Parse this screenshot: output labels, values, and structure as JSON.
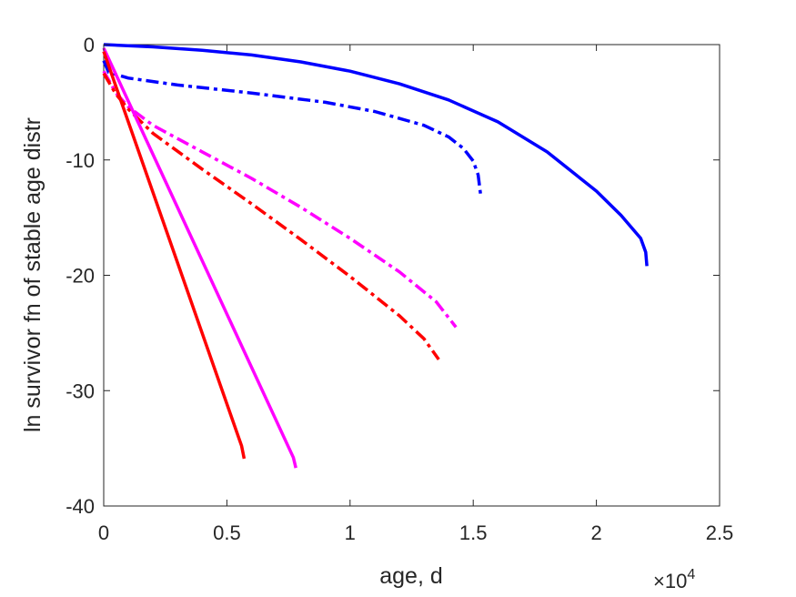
{
  "chart_data": {
    "type": "line",
    "xlabel": "age, d",
    "ylabel": "ln survivor fn of stable age distr",
    "x_multiplier": "×10",
    "x_multiplier_exponent": "4",
    "xlim": [
      0,
      25000
    ],
    "ylim": [
      -40,
      0
    ],
    "x_ticks": [
      0,
      5000,
      10000,
      15000,
      20000,
      25000
    ],
    "x_tick_labels": [
      "0",
      "0.5",
      "1",
      "1.5",
      "2",
      "2.5"
    ],
    "y_ticks": [
      0,
      -10,
      -20,
      -30,
      -40
    ],
    "y_tick_labels": [
      "0",
      "-10",
      "-20",
      "-30",
      "-40"
    ],
    "grid": false,
    "series": [
      {
        "color": "#0000ff",
        "dash": "solid",
        "x": [
          0,
          2000,
          4000,
          6000,
          8000,
          10000,
          12000,
          14000,
          16000,
          18000,
          20000,
          21000,
          21800,
          22000,
          22050
        ],
        "y": [
          0,
          -0.2,
          -0.5,
          -0.9,
          -1.5,
          -2.3,
          -3.4,
          -4.8,
          -6.7,
          -9.3,
          -12.7,
          -14.8,
          -16.8,
          -18.0,
          -19.2
        ]
      },
      {
        "color": "#0000ff",
        "dash": "dashdot",
        "x": [
          0,
          200,
          1000,
          3000,
          6000,
          9000,
          11000,
          13000,
          14000,
          14600,
          15000,
          15200,
          15300
        ],
        "y": [
          -1.4,
          -2.4,
          -2.9,
          -3.5,
          -4.2,
          -5.0,
          -5.8,
          -7.0,
          -8.0,
          -9.0,
          -10.1,
          -11.3,
          -13.0
        ]
      },
      {
        "color": "#ff00ff",
        "dash": "dashdot",
        "x": [
          0,
          500,
          1000,
          2000,
          4000,
          6000,
          8000,
          10000,
          12000,
          13500,
          14300
        ],
        "y": [
          -2.3,
          -4.2,
          -5.4,
          -7.0,
          -9.3,
          -11.6,
          -14.1,
          -16.8,
          -19.7,
          -22.3,
          -24.5
        ]
      },
      {
        "color": "#ff0000",
        "dash": "dashdot",
        "x": [
          0,
          500,
          1000,
          2000,
          4000,
          6000,
          8000,
          10000,
          12000,
          13000,
          13600
        ],
        "y": [
          -2.5,
          -4.3,
          -5.6,
          -7.7,
          -10.8,
          -13.8,
          -16.9,
          -20.1,
          -23.5,
          -25.5,
          -27.3
        ]
      },
      {
        "color": "#ff00ff",
        "dash": "solid",
        "x": [
          0,
          7700,
          7800
        ],
        "y": [
          -0.3,
          -35.8,
          -36.7
        ]
      },
      {
        "color": "#ff0000",
        "dash": "solid",
        "x": [
          0,
          5600,
          5700
        ],
        "y": [
          -0.6,
          -34.8,
          -35.9
        ]
      }
    ]
  }
}
